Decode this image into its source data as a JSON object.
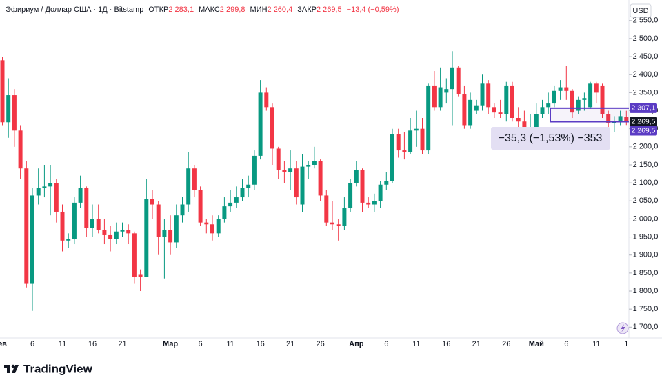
{
  "header": {
    "symbol": "Эфириум / Доллар США · 1Д · Bitstamp",
    "fields": [
      {
        "label": "ОТКР",
        "value": "2 283,1"
      },
      {
        "label": "МАКС",
        "value": "2 299,8"
      },
      {
        "label": "МИН",
        "value": "2 260,4"
      },
      {
        "label": "ЗАКР",
        "value": "2 269,5"
      }
    ],
    "change": "−13,4 (−0,59%)",
    "currency": "USD"
  },
  "brand": "TradingView",
  "measure": "−35,3 (−1,53%) −353",
  "price_tags": [
    {
      "value": 2307.1,
      "label": "2 307,1",
      "color": "#5b3cc4"
    },
    {
      "value": 2269.5,
      "label": "2 269,5",
      "color": "#131722"
    },
    {
      "value": 2269.5,
      "label": "2 269,5",
      "color": "#5b3cc4"
    }
  ],
  "chart_data": {
    "type": "candlestick",
    "up_color": "#089981",
    "down_color": "#f23645",
    "grid": false,
    "ylim": [
      1670,
      2607
    ],
    "yticks": [
      {
        "value": 1700,
        "label": "1 700,0"
      },
      {
        "value": 1750,
        "label": "1 750,0"
      },
      {
        "value": 1800,
        "label": "1 800,0"
      },
      {
        "value": 1850,
        "label": "1 850,0"
      },
      {
        "value": 1900,
        "label": "1 900,0"
      },
      {
        "value": 1950,
        "label": "1 950,0"
      },
      {
        "value": 2000,
        "label": "2 000,0"
      },
      {
        "value": 2050,
        "label": "2 050,0"
      },
      {
        "value": 2100,
        "label": "2 100,0"
      },
      {
        "value": 2150,
        "label": "2 150,0"
      },
      {
        "value": 2200,
        "label": "2 200,0"
      },
      {
        "value": 2250,
        "label": "2 250,0"
      },
      {
        "value": 2300,
        "label": "2 300,0"
      },
      {
        "value": 2350,
        "label": "2 350,0"
      },
      {
        "value": 2400,
        "label": "2 400,0"
      },
      {
        "value": 2450,
        "label": "2 450,0"
      },
      {
        "value": 2500,
        "label": "2 500,0"
      },
      {
        "value": 2550,
        "label": "2 550,0"
      }
    ],
    "categories": [
      "ев",
      null,
      null,
      null,
      null,
      "6",
      null,
      null,
      null,
      null,
      "11",
      null,
      null,
      null,
      null,
      "16",
      null,
      null,
      null,
      null,
      "21",
      null,
      null,
      null,
      null,
      null,
      null,
      null,
      "Мар",
      null,
      null,
      null,
      null,
      "6",
      null,
      null,
      null,
      null,
      "11",
      null,
      null,
      null,
      null,
      "16",
      null,
      null,
      null,
      null,
      "21",
      null,
      null,
      null,
      null,
      "26",
      null,
      null,
      null,
      null,
      null,
      "Апр",
      null,
      null,
      null,
      null,
      "6",
      null,
      null,
      null,
      null,
      "11",
      null,
      null,
      null,
      null,
      "16",
      null,
      null,
      null,
      null,
      "21",
      null,
      null,
      null,
      null,
      "26",
      null,
      null,
      null,
      null,
      "Май",
      null,
      null,
      null,
      null,
      "6",
      null,
      null,
      null,
      null,
      "11",
      null,
      null,
      null,
      null,
      "1"
    ],
    "open": [
      2440,
      2268,
      2343,
      2245,
      2140,
      1820,
      2065,
      2085,
      2090,
      2100,
      2020,
      1940,
      1945,
      2045,
      2085,
      1975,
      2000,
      1970,
      1955,
      1945,
      1965,
      1970,
      1960,
      1845,
      1840,
      2055,
      2040,
      1950,
      1970,
      1935,
      2010,
      2040,
      2140,
      2080,
      1990,
      1985,
      1960,
      2000,
      2035,
      2045,
      2060,
      2085,
      2095,
      2175,
      2350,
      2310,
      2195,
      2135,
      2130,
      2140,
      2040,
      2145,
      2150,
      2160,
      2065,
      1990,
      1985,
      1980,
      2030,
      2100,
      2135,
      2045,
      2040,
      2050,
      2095,
      2105,
      2235,
      2190,
      2185,
      2245,
      2250,
      2190,
      2370,
      2310,
      2350,
      2360,
      2420,
      2345,
      2260,
      2300,
      2315,
      2375,
      2310,
      2295,
      2290,
      2370,
      2280,
      2270,
      2240,
      2245,
      2290,
      2310,
      2320,
      2355,
      2365,
      2355,
      2300,
      2330,
      2310,
      2375,
      2370,
      2290,
      2265,
      2270,
      2283.1
    ],
    "high": [
      2450,
      2390,
      2360,
      2260,
      2160,
      2085,
      2140,
      2150,
      2150,
      2110,
      2040,
      1960,
      2060,
      2120,
      2090,
      2040,
      2040,
      2000,
      1980,
      1990,
      1990,
      1985,
      1965,
      1860,
      2110,
      2080,
      2050,
      2000,
      2010,
      2040,
      2060,
      2185,
      2150,
      2090,
      2000,
      2010,
      2010,
      2060,
      2080,
      2090,
      2110,
      2120,
      2190,
      2385,
      2365,
      2320,
      2200,
      2160,
      2190,
      2160,
      2180,
      2160,
      2200,
      2165,
      2080,
      2050,
      2000,
      2060,
      2110,
      2160,
      2140,
      2060,
      2070,
      2105,
      2130,
      2250,
      2250,
      2240,
      2280,
      2300,
      2280,
      2375,
      2410,
      2420,
      2390,
      2465,
      2425,
      2370,
      2350,
      2330,
      2400,
      2385,
      2320,
      2330,
      2380,
      2380,
      2310,
      2300,
      2290,
      2320,
      2330,
      2350,
      2370,
      2385,
      2425,
      2360,
      2340,
      2350,
      2380,
      2380,
      2375,
      2300,
      2285,
      2300,
      2299.8
    ],
    "low": [
      2260,
      2225,
      2200,
      2110,
      1810,
      1745,
      2040,
      2060,
      2010,
      1990,
      1910,
      1920,
      1930,
      2030,
      1950,
      1950,
      1960,
      1930,
      1910,
      1930,
      1950,
      1930,
      1820,
      1800,
      1840,
      2000,
      1900,
      1835,
      1900,
      1920,
      1990,
      2020,
      2060,
      1980,
      1960,
      1940,
      1950,
      1990,
      2020,
      2030,
      2050,
      2060,
      2080,
      2165,
      2300,
      2150,
      2110,
      2100,
      2080,
      2040,
      2020,
      2110,
      2140,
      2050,
      1980,
      1970,
      1940,
      1970,
      2020,
      2090,
      2020,
      2030,
      2020,
      2030,
      2080,
      2100,
      2170,
      2165,
      2180,
      2200,
      2180,
      2180,
      2300,
      2300,
      2320,
      2260,
      2340,
      2250,
      2250,
      2290,
      2300,
      2290,
      2280,
      2280,
      2270,
      2270,
      2250,
      2230,
      2235,
      2240,
      2280,
      2290,
      2310,
      2330,
      2330,
      2280,
      2290,
      2300,
      2305,
      2320,
      2280,
      2255,
      2240,
      2260,
      2260.4
    ],
    "close": [
      2268,
      2343,
      2245,
      2140,
      1820,
      2065,
      2085,
      2090,
      2100,
      2020,
      1940,
      1945,
      2045,
      2085,
      1975,
      2000,
      1970,
      1955,
      1945,
      1965,
      1970,
      1960,
      1840,
      1840,
      2055,
      2040,
      1950,
      1970,
      1935,
      2010,
      2040,
      2140,
      2080,
      1990,
      1985,
      1960,
      2000,
      2035,
      2045,
      2060,
      2085,
      2095,
      2175,
      2350,
      2310,
      2195,
      2135,
      2130,
      2140,
      2060,
      2145,
      2150,
      2160,
      2065,
      1990,
      1985,
      1980,
      2030,
      2100,
      2135,
      2045,
      2040,
      2050,
      2095,
      2105,
      2235,
      2190,
      2185,
      2245,
      2250,
      2190,
      2370,
      2310,
      2365,
      2360,
      2420,
      2345,
      2260,
      2330,
      2315,
      2375,
      2310,
      2295,
      2290,
      2370,
      2280,
      2270,
      2240,
      2245,
      2290,
      2310,
      2320,
      2355,
      2365,
      2355,
      2295,
      2330,
      2335,
      2375,
      2350,
      2290,
      2265,
      2270,
      2285,
      2269.5
    ]
  }
}
